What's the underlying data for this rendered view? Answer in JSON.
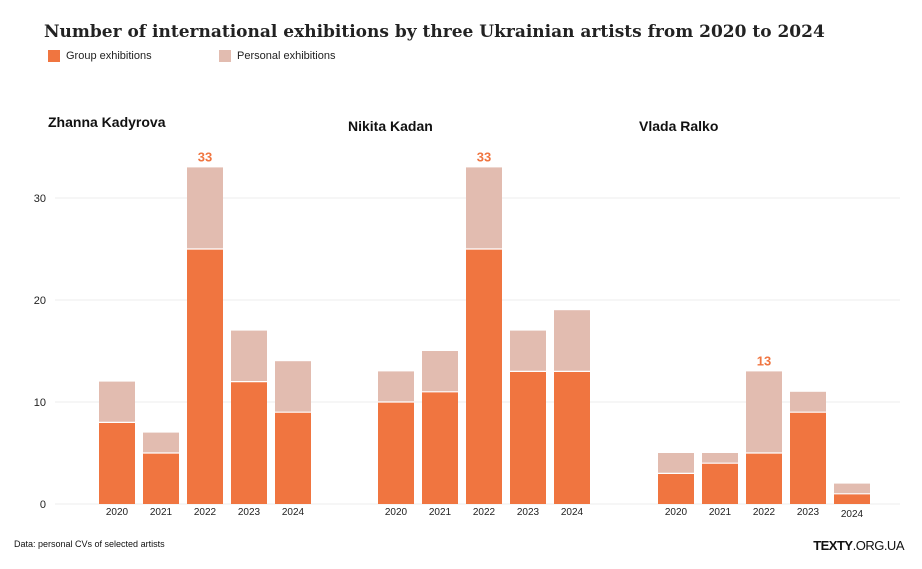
{
  "title": "Number of international exhibitions by three Ukrainian artists from 2020 to 2024",
  "source": "Data: personal CVs of selected artists",
  "logo": "TEXTY.ORG.UA",
  "colors": {
    "group": "#f07540",
    "personal": "#e2bcb0",
    "label": "#f07540"
  },
  "chart_data": {
    "type": "bar",
    "stacked": true,
    "title": "Number of international exhibitions by three Ukrainian artists from 2020 to 2024",
    "legend": [
      "Group exhibitions",
      "Personal exhibitions"
    ],
    "legend_position": "top-left",
    "ylim": [
      0,
      33
    ],
    "yticks": [
      0,
      10,
      20,
      30
    ],
    "grid": true,
    "categories": [
      "2020",
      "2021",
      "2022",
      "2023",
      "2024"
    ],
    "panels": [
      {
        "name": "Zhanna Kadyrova",
        "series": [
          {
            "name": "Group exhibitions",
            "values": [
              8,
              5,
              25,
              12,
              9
            ]
          },
          {
            "name": "Personal exhibitions",
            "values": [
              4,
              2,
              8,
              5,
              5
            ]
          }
        ],
        "annotation": {
          "category": "2022",
          "text": "33"
        }
      },
      {
        "name": "Nikita Kadan",
        "series": [
          {
            "name": "Group exhibitions",
            "values": [
              10,
              11,
              25,
              13,
              13
            ]
          },
          {
            "name": "Personal exhibitions",
            "values": [
              3,
              4,
              8,
              4,
              6
            ]
          }
        ],
        "annotation": {
          "category": "2022",
          "text": "33"
        }
      },
      {
        "name": "Vlada Ralko",
        "series": [
          {
            "name": "Group exhibitions",
            "values": [
              3,
              4,
              5,
              9,
              1
            ]
          },
          {
            "name": "Personal exhibitions",
            "values": [
              2,
              1,
              8,
              2,
              1
            ]
          }
        ],
        "annotation": {
          "category": "2022",
          "text": "13"
        }
      }
    ]
  }
}
